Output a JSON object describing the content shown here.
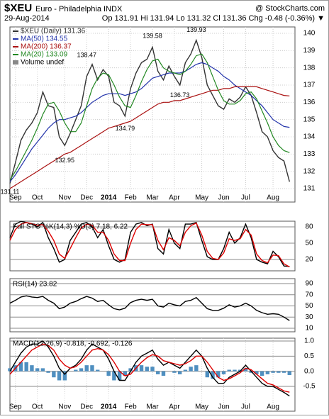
{
  "header": {
    "symbol": "$XEU",
    "name": "Euro - Philadelphia INDX",
    "source": "@ StockCharts.com",
    "date": "29-Aug-2014",
    "quote": "Op 131.91 Hi 131.94 Lo 131.32 Cl 131.36 Chg -0.48 (-0.36%) ▼"
  },
  "chart_data": [
    {
      "type": "line",
      "ylim": [
        130.22,
        140.37
      ],
      "xlim": [
        0,
        52
      ],
      "yticks": [
        131,
        132,
        133,
        134,
        135,
        136,
        137,
        138,
        139,
        140
      ],
      "xticks": [
        {
          "value": 1,
          "label": "Sep"
        },
        {
          "value": 5,
          "label": "Oct"
        },
        {
          "value": 10,
          "label": "Nov"
        },
        {
          "value": 14,
          "label": "Dec"
        },
        {
          "value": 18,
          "label": "2014"
        },
        {
          "value": 22,
          "label": "Feb"
        },
        {
          "value": 26,
          "label": "Mar"
        },
        {
          "value": 30,
          "label": "Apr"
        },
        {
          "value": 35,
          "label": "May"
        },
        {
          "value": 39,
          "label": "Jun"
        },
        {
          "value": 43,
          "label": "Jul"
        },
        {
          "value": 48,
          "label": "Aug"
        }
      ],
      "grid": true,
      "legend_extra": "Volume undef",
      "series": [
        {
          "name": "$XEU (Daily) 131.36",
          "color": "#333333",
          "values": [
            131.3,
            132.5,
            133.8,
            134.4,
            134.8,
            135.4,
            136.6,
            135.8,
            135.7,
            134.0,
            133.5,
            134.2,
            135.0,
            135.8,
            137.5,
            138.2,
            137.3,
            137.9,
            137.5,
            136.0,
            135.8,
            135.2,
            136.8,
            137.7,
            138.3,
            138.5,
            139.2,
            137.8,
            137.3,
            138.1,
            137.5,
            137.0,
            138.3,
            138.8,
            139.6,
            138.6,
            137.0,
            136.4,
            135.8,
            135.6,
            136.2,
            136.0,
            136.3,
            136.9,
            136.4,
            135.4,
            134.3,
            134.0,
            133.2,
            132.8,
            132.6,
            131.4
          ]
        },
        {
          "name": "MA(50) 134.55",
          "color": "#2233aa",
          "values": [
            131.4,
            131.8,
            132.3,
            132.8,
            133.3,
            133.7,
            134.1,
            134.5,
            134.8,
            135.0,
            135.0,
            135.1,
            135.2,
            135.4,
            135.7,
            136.0,
            136.2,
            136.4,
            136.5,
            136.5,
            136.5,
            136.4,
            136.5,
            136.6,
            136.8,
            137.1,
            137.4,
            137.5,
            137.6,
            137.7,
            137.7,
            137.7,
            137.8,
            138.0,
            138.2,
            138.3,
            138.2,
            138.0,
            137.8,
            137.5,
            137.3,
            137.0,
            136.8,
            136.6,
            136.4,
            136.1,
            135.8,
            135.4,
            135.0,
            134.8,
            134.6,
            134.55
          ]
        },
        {
          "name": "MA(200) 136.37",
          "color": "#aa1111",
          "values": [
            131.0,
            131.2,
            131.4,
            131.6,
            131.8,
            132.0,
            132.2,
            132.4,
            132.6,
            132.8,
            133.0,
            133.1,
            133.3,
            133.5,
            133.7,
            133.9,
            134.1,
            134.3,
            134.5,
            134.6,
            134.7,
            134.8,
            134.9,
            135.1,
            135.3,
            135.5,
            135.7,
            135.9,
            136.0,
            136.0,
            136.1,
            136.1,
            136.2,
            136.3,
            136.4,
            136.5,
            136.6,
            136.7,
            136.7,
            136.8,
            136.8,
            136.9,
            136.9,
            136.9,
            136.9,
            136.9,
            136.8,
            136.7,
            136.6,
            136.5,
            136.4,
            136.37
          ]
        },
        {
          "name": "MA(20) 133.09",
          "color": "#228822",
          "values": [
            131.5,
            132.0,
            132.6,
            133.2,
            133.8,
            134.5,
            135.3,
            135.9,
            136.0,
            135.5,
            134.8,
            134.3,
            134.3,
            134.8,
            135.8,
            136.8,
            137.4,
            137.7,
            137.6,
            137.0,
            136.3,
            135.8,
            135.7,
            136.4,
            137.2,
            137.9,
            138.4,
            138.5,
            138.0,
            137.8,
            137.7,
            137.6,
            137.8,
            138.2,
            138.7,
            138.8,
            138.3,
            137.5,
            136.7,
            136.1,
            135.9,
            135.9,
            136.1,
            136.5,
            136.6,
            136.2,
            135.5,
            134.8,
            134.0,
            133.5,
            133.2,
            133.09
          ]
        }
      ],
      "annotations": [
        {
          "label": "131.11",
          "value": 131.11,
          "x": 0
        },
        {
          "label": "132.95",
          "value": 132.95,
          "x": 10
        },
        {
          "label": "138.47",
          "value": 138.47,
          "x": 14
        },
        {
          "label": "134.79",
          "value": 134.79,
          "x": 21
        },
        {
          "label": "139.58",
          "value": 139.58,
          "x": 26
        },
        {
          "label": "136.73",
          "value": 136.73,
          "x": 31
        },
        {
          "label": "139.93",
          "value": 139.93,
          "x": 34
        }
      ]
    },
    {
      "type": "line",
      "title": "Full STO %K(14,3) %D(3) 7.18, 6.22",
      "ylim": [
        -0.9,
        90.4
      ],
      "xlim": [
        0,
        52
      ],
      "yticks": [
        20,
        50,
        80
      ],
      "grid": true,
      "series": [
        {
          "name": "%K",
          "color": "#000000",
          "values": [
            60,
            85,
            90,
            88,
            85,
            80,
            88,
            60,
            40,
            15,
            20,
            55,
            70,
            85,
            88,
            80,
            60,
            75,
            45,
            20,
            15,
            20,
            70,
            85,
            88,
            82,
            85,
            40,
            30,
            75,
            50,
            40,
            85,
            85,
            88,
            55,
            25,
            20,
            20,
            40,
            70,
            50,
            60,
            85,
            60,
            20,
            15,
            12,
            35,
            25,
            8,
            7.18
          ]
        },
        {
          "name": "%D",
          "color": "#dd0000",
          "values": [
            55,
            75,
            85,
            88,
            86,
            83,
            84,
            72,
            55,
            30,
            22,
            40,
            60,
            78,
            85,
            83,
            70,
            70,
            55,
            30,
            18,
            18,
            50,
            75,
            85,
            84,
            84,
            55,
            38,
            60,
            55,
            45,
            70,
            82,
            87,
            65,
            35,
            22,
            20,
            32,
            58,
            55,
            58,
            75,
            65,
            30,
            18,
            14,
            28,
            27,
            12,
            6.22
          ]
        }
      ]
    },
    {
      "type": "line",
      "title": "RSI(14) 23.82",
      "ylim": [
        3.65,
        98.9
      ],
      "xlim": [
        0,
        52
      ],
      "yticks": [
        10,
        30,
        50,
        70,
        90
      ],
      "grid": true,
      "series": [
        {
          "name": "RSI",
          "color": "#000000",
          "values": [
            55,
            60,
            66,
            68,
            66,
            65,
            67,
            60,
            55,
            45,
            48,
            55,
            58,
            63,
            67,
            64,
            58,
            60,
            52,
            45,
            43,
            46,
            56,
            60,
            62,
            60,
            62,
            50,
            48,
            55,
            52,
            50,
            58,
            60,
            65,
            55,
            45,
            42,
            42,
            46,
            52,
            48,
            50,
            55,
            50,
            42,
            38,
            35,
            36,
            35,
            30,
            23.82
          ]
        }
      ]
    },
    {
      "type": "line",
      "title": "MACD(12,26,9) -0.818, -0.692, -0.126",
      "ylim": [
        -1.32,
        1.094
      ],
      "xlim": [
        0,
        52
      ],
      "yticks": [
        {
          "value": 1,
          "label": "1.0"
        },
        {
          "value": 0.5,
          "label": "0.5"
        },
        {
          "value": 0,
          "label": "0.0"
        },
        {
          "value": -0.5,
          "label": "-0.5"
        }
      ],
      "grid": true,
      "xticks": [
        {
          "value": 1,
          "label": "Sep"
        },
        {
          "value": 5,
          "label": "Oct"
        },
        {
          "value": 10,
          "label": "Nov"
        },
        {
          "value": 14,
          "label": "Dec"
        },
        {
          "value": 18,
          "label": "2014"
        },
        {
          "value": 22,
          "label": "Feb"
        },
        {
          "value": 26,
          "label": "Mar"
        },
        {
          "value": 30,
          "label": "Apr"
        },
        {
          "value": 35,
          "label": "May"
        },
        {
          "value": 39,
          "label": "Jun"
        },
        {
          "value": 43,
          "label": "Jul"
        },
        {
          "value": 48,
          "label": "Aug"
        }
      ],
      "series": [
        {
          "name": "Histogram",
          "color": "#4f8fc0",
          "style": "bar",
          "values": [
            0.1,
            0.2,
            0.3,
            0.3,
            0.2,
            0.1,
            0.1,
            -0.05,
            -0.2,
            -0.3,
            -0.3,
            0,
            0.05,
            0.1,
            0.2,
            0.2,
            0.05,
            0,
            -0.15,
            -0.3,
            -0.3,
            -0.15,
            0.1,
            0.2,
            0.2,
            0.15,
            0.15,
            -0.1,
            -0.15,
            0,
            -0.05,
            -0.1,
            0.05,
            0.15,
            0.2,
            0,
            -0.2,
            -0.25,
            -0.2,
            -0.1,
            0.05,
            0.05,
            0.05,
            0.1,
            -0.05,
            -0.1,
            -0.15,
            -0.1,
            -0.05,
            -0.05,
            -0.05,
            -0.126
          ]
        },
        {
          "name": "MACD",
          "color": "#000000",
          "values": [
            0.0,
            0.3,
            0.6,
            0.8,
            0.9,
            0.9,
            1.0,
            0.8,
            0.5,
            0.1,
            -0.1,
            0.1,
            0.2,
            0.4,
            0.7,
            0.9,
            0.8,
            0.7,
            0.4,
            0.0,
            -0.3,
            -0.3,
            0.0,
            0.3,
            0.5,
            0.6,
            0.7,
            0.4,
            0.2,
            0.3,
            0.2,
            0.1,
            0.3,
            0.5,
            0.7,
            0.5,
            0.1,
            -0.2,
            -0.4,
            -0.4,
            -0.2,
            -0.1,
            0.0,
            0.2,
            0.0,
            -0.2,
            -0.4,
            -0.5,
            -0.5,
            -0.6,
            -0.7,
            -0.818
          ]
        },
        {
          "name": "Signal",
          "color": "#dd0000",
          "values": [
            -0.1,
            0.1,
            0.3,
            0.5,
            0.7,
            0.8,
            0.9,
            0.85,
            0.7,
            0.4,
            0.2,
            0.1,
            0.15,
            0.3,
            0.5,
            0.7,
            0.75,
            0.7,
            0.55,
            0.3,
            0.0,
            -0.15,
            -0.1,
            0.1,
            0.3,
            0.45,
            0.55,
            0.5,
            0.35,
            0.3,
            0.25,
            0.2,
            0.25,
            0.35,
            0.5,
            0.5,
            0.3,
            0.05,
            -0.2,
            -0.3,
            -0.25,
            -0.15,
            -0.05,
            0.1,
            0.05,
            -0.1,
            -0.25,
            -0.4,
            -0.45,
            -0.55,
            -0.65,
            -0.692
          ]
        }
      ]
    }
  ]
}
